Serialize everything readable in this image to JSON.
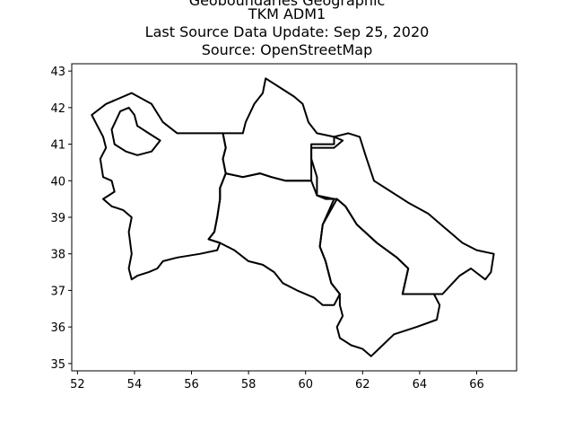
{
  "title_lines": [
    "Geoboundaries Geographic",
    "TKM ADM1",
    "Last Source Data Update: Sep 25, 2020",
    "Source: OpenStreetMap"
  ],
  "map": {
    "xlim": [
      51.8,
      67.4
    ],
    "ylim": [
      34.8,
      43.2
    ],
    "xticks": [
      52,
      54,
      56,
      58,
      60,
      62,
      64,
      66
    ],
    "yticks": [
      35,
      36,
      37,
      38,
      39,
      40,
      41,
      42,
      43
    ],
    "stroke_color": "#000000",
    "regions": [
      {
        "id": "balkan",
        "coords": [
          [
            52.5,
            41.8
          ],
          [
            53.0,
            42.1
          ],
          [
            53.9,
            42.4
          ],
          [
            54.6,
            42.1
          ],
          [
            55.0,
            41.6
          ],
          [
            55.5,
            41.3
          ],
          [
            56.2,
            41.3
          ],
          [
            57.1,
            41.3
          ],
          [
            57.2,
            40.9
          ],
          [
            57.1,
            40.6
          ],
          [
            57.2,
            40.2
          ],
          [
            57.0,
            39.8
          ],
          [
            57.0,
            39.5
          ],
          [
            56.9,
            39.0
          ],
          [
            56.8,
            38.6
          ],
          [
            56.6,
            38.4
          ],
          [
            57.0,
            38.3
          ],
          [
            56.9,
            38.1
          ],
          [
            56.3,
            38.0
          ],
          [
            55.5,
            37.9
          ],
          [
            55.0,
            37.8
          ],
          [
            54.8,
            37.6
          ],
          [
            54.5,
            37.5
          ],
          [
            54.1,
            37.4
          ],
          [
            53.9,
            37.3
          ],
          [
            53.8,
            37.6
          ],
          [
            53.9,
            38.0
          ],
          [
            53.8,
            38.6
          ],
          [
            53.9,
            39.0
          ],
          [
            53.6,
            39.2
          ],
          [
            53.2,
            39.3
          ],
          [
            52.9,
            39.5
          ],
          [
            53.3,
            39.7
          ],
          [
            53.2,
            40.0
          ],
          [
            52.9,
            40.1
          ],
          [
            52.8,
            40.6
          ],
          [
            53.0,
            40.9
          ],
          [
            52.9,
            41.2
          ],
          [
            52.7,
            41.5
          ]
        ]
      },
      {
        "id": "dashoguz",
        "coords": [
          [
            57.1,
            41.3
          ],
          [
            57.8,
            41.3
          ],
          [
            57.9,
            41.6
          ],
          [
            58.2,
            42.1
          ],
          [
            58.5,
            42.4
          ],
          [
            58.6,
            42.8
          ],
          [
            59.2,
            42.5
          ],
          [
            59.6,
            42.3
          ],
          [
            59.9,
            42.1
          ],
          [
            60.1,
            41.6
          ],
          [
            60.4,
            41.3
          ],
          [
            61.0,
            41.2
          ],
          [
            61.3,
            41.1
          ],
          [
            61.0,
            40.9
          ],
          [
            60.2,
            40.9
          ],
          [
            60.2,
            40.5
          ],
          [
            60.2,
            40.0
          ],
          [
            59.3,
            40.0
          ],
          [
            58.8,
            40.1
          ],
          [
            58.4,
            40.2
          ],
          [
            57.8,
            40.1
          ],
          [
            57.2,
            40.2
          ],
          [
            57.1,
            40.6
          ],
          [
            57.2,
            40.9
          ]
        ]
      },
      {
        "id": "ahal",
        "coords": [
          [
            57.2,
            40.2
          ],
          [
            57.8,
            40.1
          ],
          [
            58.4,
            40.2
          ],
          [
            58.8,
            40.1
          ],
          [
            59.3,
            40.0
          ],
          [
            60.2,
            40.0
          ],
          [
            60.4,
            39.6
          ],
          [
            61.0,
            39.5
          ],
          [
            60.6,
            38.8
          ],
          [
            60.5,
            38.2
          ],
          [
            60.7,
            37.8
          ],
          [
            60.9,
            37.2
          ],
          [
            61.2,
            36.9
          ],
          [
            61.0,
            36.6
          ],
          [
            60.6,
            36.6
          ],
          [
            60.3,
            36.8
          ],
          [
            59.7,
            37.0
          ],
          [
            59.2,
            37.2
          ],
          [
            58.9,
            37.5
          ],
          [
            58.5,
            37.7
          ],
          [
            58.0,
            37.8
          ],
          [
            57.5,
            38.1
          ],
          [
            57.0,
            38.3
          ],
          [
            56.6,
            38.4
          ],
          [
            56.8,
            38.6
          ],
          [
            56.9,
            39.0
          ],
          [
            57.0,
            39.5
          ],
          [
            57.0,
            39.8
          ]
        ]
      },
      {
        "id": "lebap",
        "coords": [
          [
            60.2,
            41.0
          ],
          [
            61.0,
            41.0
          ],
          [
            61.0,
            41.2
          ],
          [
            61.5,
            41.3
          ],
          [
            61.9,
            41.2
          ],
          [
            62.1,
            40.7
          ],
          [
            62.4,
            40.0
          ],
          [
            63.0,
            39.7
          ],
          [
            63.6,
            39.4
          ],
          [
            64.3,
            39.1
          ],
          [
            64.9,
            38.7
          ],
          [
            65.5,
            38.3
          ],
          [
            66.0,
            38.1
          ],
          [
            66.6,
            38.0
          ],
          [
            66.5,
            37.5
          ],
          [
            66.3,
            37.3
          ],
          [
            65.8,
            37.6
          ],
          [
            65.4,
            37.4
          ],
          [
            64.8,
            36.9
          ],
          [
            63.4,
            36.9
          ],
          [
            63.6,
            37.6
          ],
          [
            63.2,
            37.9
          ],
          [
            62.5,
            38.3
          ],
          [
            61.8,
            38.8
          ],
          [
            61.4,
            39.3
          ],
          [
            61.1,
            39.5
          ],
          [
            60.7,
            39.5
          ],
          [
            60.4,
            39.6
          ],
          [
            60.4,
            40.1
          ],
          [
            60.2,
            40.6
          ]
        ]
      },
      {
        "id": "mary",
        "coords": [
          [
            61.1,
            39.5
          ],
          [
            61.4,
            39.3
          ],
          [
            61.8,
            38.8
          ],
          [
            62.5,
            38.3
          ],
          [
            63.2,
            37.9
          ],
          [
            63.6,
            37.6
          ],
          [
            63.4,
            36.9
          ],
          [
            64.5,
            36.9
          ],
          [
            64.7,
            36.6
          ],
          [
            64.6,
            36.2
          ],
          [
            63.9,
            36.0
          ],
          [
            63.1,
            35.8
          ],
          [
            62.7,
            35.5
          ],
          [
            62.3,
            35.2
          ],
          [
            62.0,
            35.4
          ],
          [
            61.6,
            35.5
          ],
          [
            61.2,
            35.7
          ],
          [
            61.1,
            36.0
          ],
          [
            61.3,
            36.3
          ],
          [
            61.2,
            36.6
          ],
          [
            61.2,
            36.9
          ],
          [
            60.9,
            37.2
          ],
          [
            60.7,
            37.8
          ],
          [
            60.5,
            38.2
          ],
          [
            60.6,
            38.8
          ]
        ]
      }
    ],
    "lakes": [
      {
        "id": "kara-bogaz-gol",
        "coords": [
          [
            53.2,
            41.4
          ],
          [
            53.5,
            41.9
          ],
          [
            53.8,
            42.0
          ],
          [
            54.0,
            41.8
          ],
          [
            54.1,
            41.5
          ],
          [
            54.5,
            41.3
          ],
          [
            54.9,
            41.1
          ],
          [
            54.6,
            40.8
          ],
          [
            54.1,
            40.7
          ],
          [
            53.7,
            40.8
          ],
          [
            53.3,
            41.0
          ]
        ]
      }
    ]
  }
}
